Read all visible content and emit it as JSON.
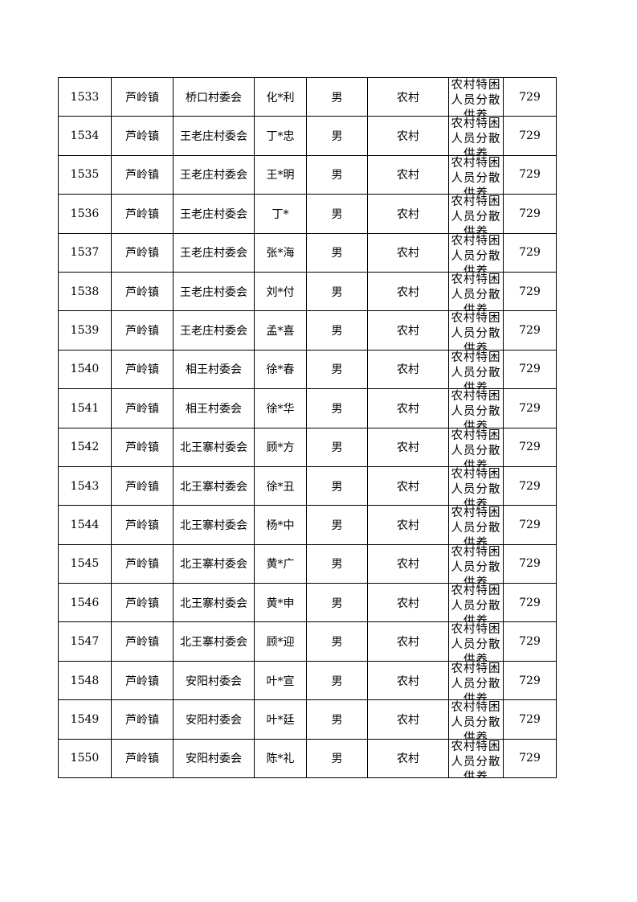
{
  "rows": [
    {
      "no": "1533",
      "town": "芦岭镇",
      "village": "桥口村委会",
      "name": "化*利",
      "gender": "男",
      "type": "农村",
      "category": "农村特困人员分散供养",
      "amount": "729"
    },
    {
      "no": "1534",
      "town": "芦岭镇",
      "village": "王老庄村委会",
      "name": "丁*忠",
      "gender": "男",
      "type": "农村",
      "category": "农村特困人员分散供养",
      "amount": "729"
    },
    {
      "no": "1535",
      "town": "芦岭镇",
      "village": "王老庄村委会",
      "name": "王*明",
      "gender": "男",
      "type": "农村",
      "category": "农村特困人员分散供养",
      "amount": "729"
    },
    {
      "no": "1536",
      "town": "芦岭镇",
      "village": "王老庄村委会",
      "name": "丁*",
      "gender": "男",
      "type": "农村",
      "category": "农村特困人员分散供养",
      "amount": "729"
    },
    {
      "no": "1537",
      "town": "芦岭镇",
      "village": "王老庄村委会",
      "name": "张*海",
      "gender": "男",
      "type": "农村",
      "category": "农村特困人员分散供养",
      "amount": "729"
    },
    {
      "no": "1538",
      "town": "芦岭镇",
      "village": "王老庄村委会",
      "name": "刘*付",
      "gender": "男",
      "type": "农村",
      "category": "农村特困人员分散供养",
      "amount": "729"
    },
    {
      "no": "1539",
      "town": "芦岭镇",
      "village": "王老庄村委会",
      "name": "孟*喜",
      "gender": "男",
      "type": "农村",
      "category": "农村特困人员分散供养",
      "amount": "729"
    },
    {
      "no": "1540",
      "town": "芦岭镇",
      "village": "相王村委会",
      "name": "徐*春",
      "gender": "男",
      "type": "农村",
      "category": "农村特困人员分散供养",
      "amount": "729"
    },
    {
      "no": "1541",
      "town": "芦岭镇",
      "village": "相王村委会",
      "name": "徐*华",
      "gender": "男",
      "type": "农村",
      "category": "农村特困人员分散供养",
      "amount": "729"
    },
    {
      "no": "1542",
      "town": "芦岭镇",
      "village": "北王寨村委会",
      "name": "顾*方",
      "gender": "男",
      "type": "农村",
      "category": "农村特困人员分散供养",
      "amount": "729"
    },
    {
      "no": "1543",
      "town": "芦岭镇",
      "village": "北王寨村委会",
      "name": "徐*丑",
      "gender": "男",
      "type": "农村",
      "category": "农村特困人员分散供养",
      "amount": "729"
    },
    {
      "no": "1544",
      "town": "芦岭镇",
      "village": "北王寨村委会",
      "name": "杨*中",
      "gender": "男",
      "type": "农村",
      "category": "农村特困人员分散供养",
      "amount": "729"
    },
    {
      "no": "1545",
      "town": "芦岭镇",
      "village": "北王寨村委会",
      "name": "黄*广",
      "gender": "男",
      "type": "农村",
      "category": "农村特困人员分散供养",
      "amount": "729"
    },
    {
      "no": "1546",
      "town": "芦岭镇",
      "village": "北王寨村委会",
      "name": "黄*申",
      "gender": "男",
      "type": "农村",
      "category": "农村特困人员分散供养",
      "amount": "729"
    },
    {
      "no": "1547",
      "town": "芦岭镇",
      "village": "北王寨村委会",
      "name": "顾*迎",
      "gender": "男",
      "type": "农村",
      "category": "农村特困人员分散供养",
      "amount": "729"
    },
    {
      "no": "1548",
      "town": "芦岭镇",
      "village": "安阳村委会",
      "name": "叶*宣",
      "gender": "男",
      "type": "农村",
      "category": "农村特困人员分散供养",
      "amount": "729"
    },
    {
      "no": "1549",
      "town": "芦岭镇",
      "village": "安阳村委会",
      "name": "叶*廷",
      "gender": "男",
      "type": "农村",
      "category": "农村特困人员分散供养",
      "amount": "729"
    },
    {
      "no": "1550",
      "town": "芦岭镇",
      "village": "安阳村委会",
      "name": "陈*礼",
      "gender": "男",
      "type": "农村",
      "category": "农村特困人员分散供养",
      "amount": "729"
    }
  ]
}
